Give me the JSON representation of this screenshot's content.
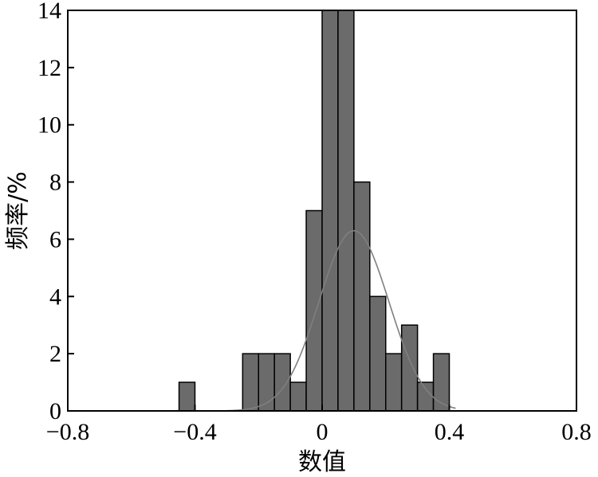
{
  "chart_data": {
    "type": "bar",
    "xlabel": "数值",
    "ylabel": "频率/%",
    "xlim": [
      -0.8,
      0.8
    ],
    "ylim": [
      0,
      14
    ],
    "x_ticks": [
      -0.8,
      -0.4,
      0,
      0.4,
      0.8
    ],
    "x_tick_labels": [
      "−0.8",
      "−0.4",
      "0",
      "0.4",
      "0.8"
    ],
    "y_ticks": [
      0,
      2,
      4,
      6,
      8,
      10,
      12,
      14
    ],
    "y_tick_labels": [
      "0",
      "2",
      "4",
      "6",
      "8",
      "10",
      "12",
      "14"
    ],
    "bin_width": 0.05,
    "bins": [
      {
        "start": -0.45,
        "value": 1
      },
      {
        "start": -0.25,
        "value": 2
      },
      {
        "start": -0.2,
        "value": 2
      },
      {
        "start": -0.15,
        "value": 2
      },
      {
        "start": -0.1,
        "value": 1
      },
      {
        "start": -0.05,
        "value": 7
      },
      {
        "start": 0.0,
        "value": 14
      },
      {
        "start": 0.05,
        "value": 14
      },
      {
        "start": 0.1,
        "value": 8
      },
      {
        "start": 0.15,
        "value": 4
      },
      {
        "start": 0.2,
        "value": 2
      },
      {
        "start": 0.25,
        "value": 3
      },
      {
        "start": 0.3,
        "value": 1
      },
      {
        "start": 0.35,
        "value": 2
      }
    ],
    "fit_curve": {
      "type": "normal",
      "mean": 0.1,
      "peak": 6.3,
      "std": 0.11,
      "x_range": [
        -0.4,
        0.42
      ]
    },
    "grid": false,
    "legend": "none",
    "colors": {
      "bar_fill": "#6b6b6b",
      "bar_edge": "#000000",
      "curve": "#7f7f7f"
    }
  }
}
